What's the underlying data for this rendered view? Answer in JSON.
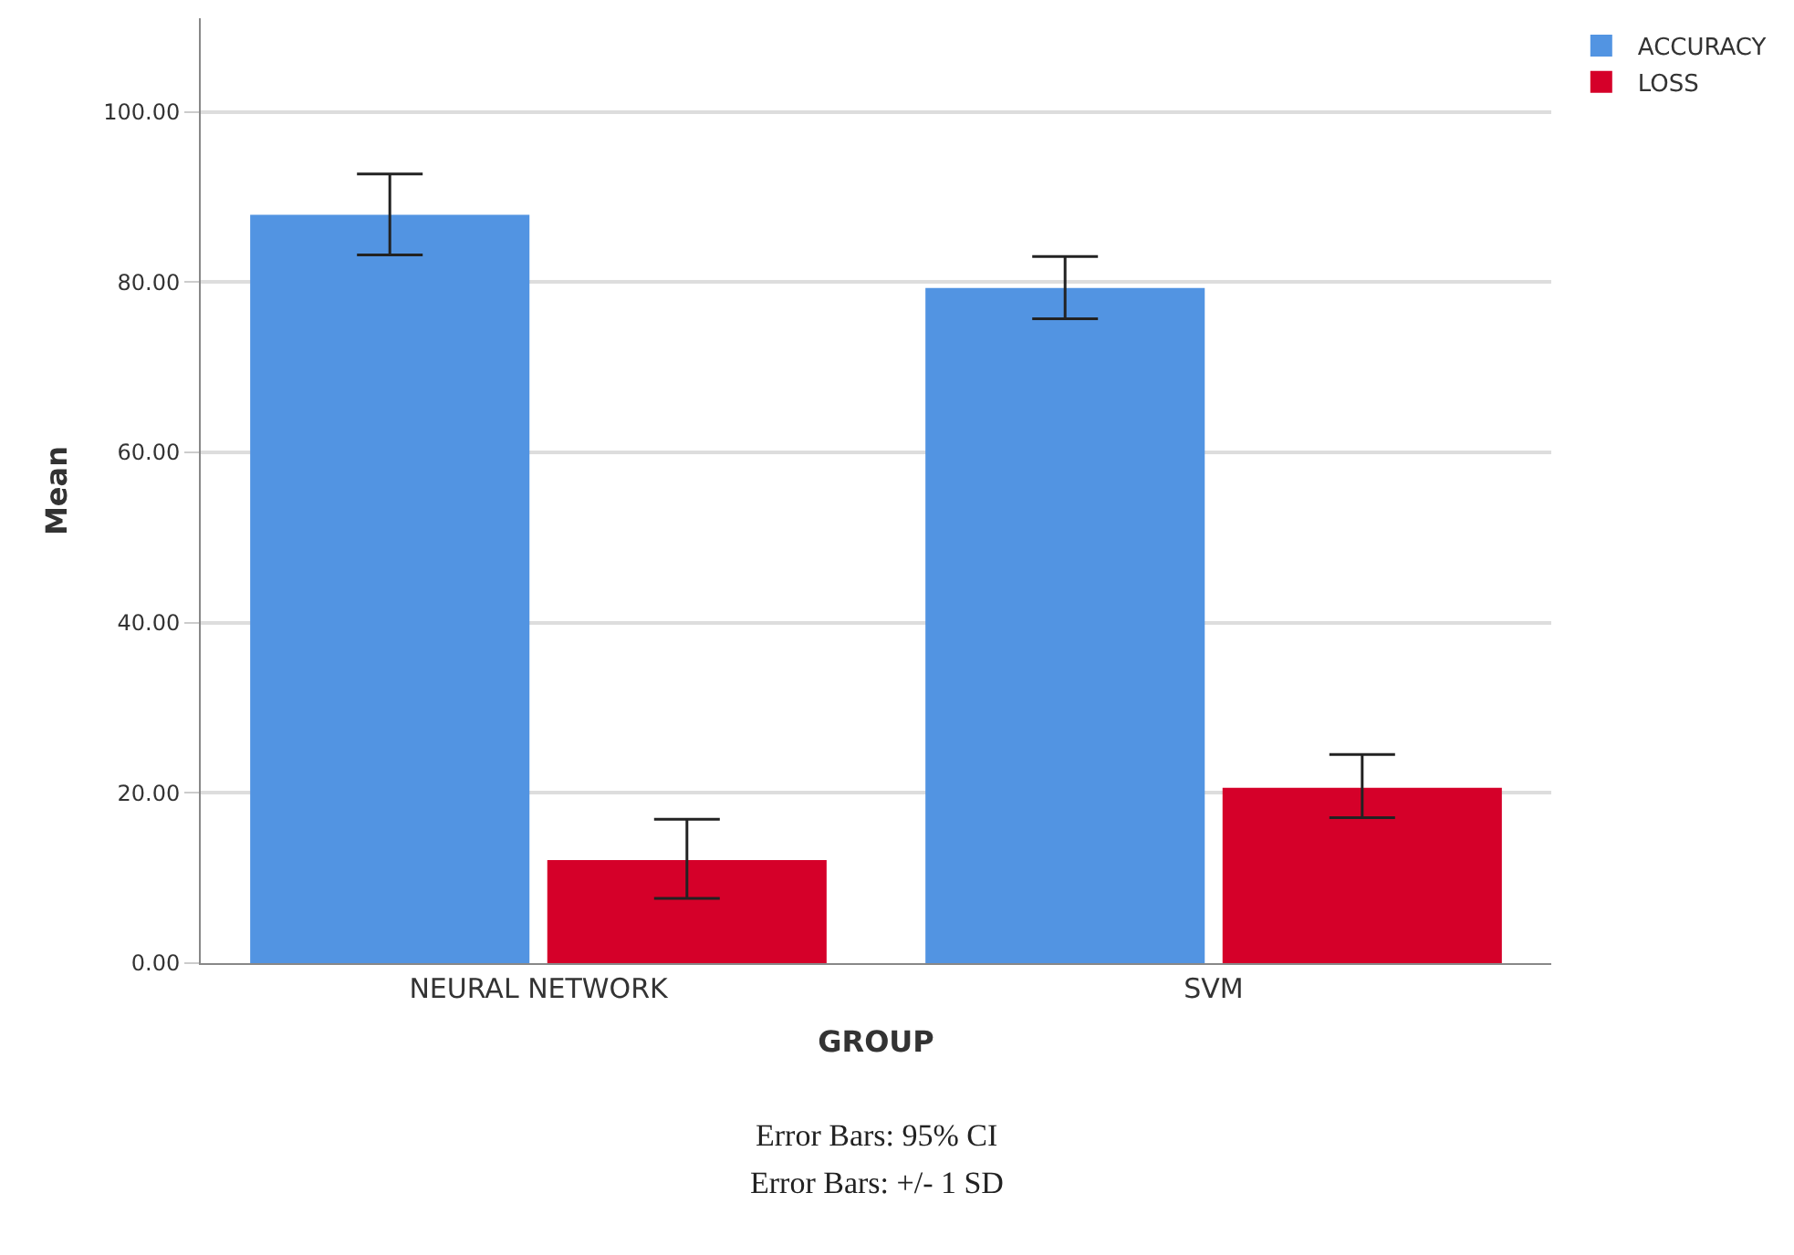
{
  "chart_data": {
    "type": "bar",
    "xlabel": "GROUP",
    "ylabel": "Mean",
    "categories": [
      "NEURAL NETWORK",
      "SVM"
    ],
    "series": [
      {
        "name": "ACCURACY",
        "color": "#5294e2",
        "values": [
          87.9,
          79.3
        ],
        "errors": [
          [
            83.2,
            92.7
          ],
          [
            75.7,
            83.0
          ]
        ]
      },
      {
        "name": "LOSS",
        "color": "#d50029",
        "values": [
          12.1,
          20.6
        ],
        "errors": [
          [
            7.6,
            16.9
          ],
          [
            17.1,
            24.5
          ]
        ]
      }
    ],
    "ylim": [
      0,
      111
    ],
    "yticks": [
      {
        "value": 0,
        "label": "0.00"
      },
      {
        "value": 20,
        "label": "20.00"
      },
      {
        "value": 40,
        "label": "40.00"
      },
      {
        "value": 60,
        "label": "60.00"
      },
      {
        "value": 80,
        "label": "80.00"
      },
      {
        "value": 100,
        "label": "100.00"
      }
    ],
    "grid": "y",
    "legend": "top right",
    "annotations": [
      "Error Bars: 95% CI",
      "Error Bars: +/- 1 SD"
    ]
  }
}
